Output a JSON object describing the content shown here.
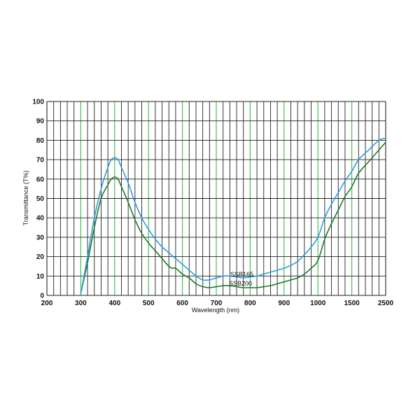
{
  "chart_data": {
    "type": "line",
    "xlabel": "Wavelength (nm)",
    "ylabel": "Transmittance (T%)",
    "x_tick_labels": [
      "200",
      "300",
      "400",
      "500",
      "600",
      "700",
      "800",
      "900",
      "1000",
      "1500",
      "2500"
    ],
    "x_scale": "piecewise: 200-1000 linear, 1000-1500 and 1500-2500 each one major division",
    "y_tick_labels": [
      "0",
      "10",
      "20",
      "30",
      "40",
      "50",
      "60",
      "70",
      "80",
      "90",
      "100"
    ],
    "xlim": [
      200,
      2500
    ],
    "ylim": [
      0,
      100
    ],
    "grid": true,
    "legend": "none (labels placed on curves)",
    "colors": {
      "ssb165": "#2d9ee0",
      "ssb200": "#1f7a2e",
      "grid_major": "#3cb84a",
      "grid_minor": "#222222"
    },
    "series": [
      {
        "name": "SSB165",
        "points": [
          [
            300,
            1
          ],
          [
            320,
            20
          ],
          [
            340,
            40
          ],
          [
            360,
            55
          ],
          [
            380,
            66
          ],
          [
            390,
            70
          ],
          [
            400,
            71
          ],
          [
            410,
            70
          ],
          [
            420,
            66
          ],
          [
            440,
            58
          ],
          [
            460,
            48
          ],
          [
            480,
            40
          ],
          [
            500,
            34
          ],
          [
            520,
            29
          ],
          [
            540,
            25
          ],
          [
            560,
            22
          ],
          [
            580,
            19
          ],
          [
            600,
            16
          ],
          [
            620,
            13
          ],
          [
            640,
            10
          ],
          [
            660,
            8
          ],
          [
            680,
            8
          ],
          [
            700,
            9
          ],
          [
            720,
            10
          ],
          [
            740,
            10
          ],
          [
            760,
            9.5
          ],
          [
            780,
            9
          ],
          [
            800,
            9.5
          ],
          [
            820,
            10
          ],
          [
            840,
            11
          ],
          [
            860,
            12
          ],
          [
            880,
            13
          ],
          [
            900,
            14
          ],
          [
            920,
            15.5
          ],
          [
            940,
            17.5
          ],
          [
            960,
            21
          ],
          [
            980,
            25
          ],
          [
            1000,
            30
          ],
          [
            1100,
            40
          ],
          [
            1200,
            47
          ],
          [
            1300,
            53
          ],
          [
            1400,
            59
          ],
          [
            1500,
            64
          ],
          [
            1700,
            70
          ],
          [
            2000,
            75
          ],
          [
            2300,
            80
          ],
          [
            2500,
            81
          ]
        ]
      },
      {
        "name": "SSB200",
        "points": [
          [
            300,
            1
          ],
          [
            320,
            17
          ],
          [
            340,
            35
          ],
          [
            360,
            50
          ],
          [
            380,
            57
          ],
          [
            390,
            60
          ],
          [
            400,
            61
          ],
          [
            410,
            60
          ],
          [
            420,
            56
          ],
          [
            440,
            48
          ],
          [
            460,
            39
          ],
          [
            480,
            32
          ],
          [
            500,
            27
          ],
          [
            520,
            23
          ],
          [
            540,
            19
          ],
          [
            560,
            15
          ],
          [
            570,
            14
          ],
          [
            580,
            14
          ],
          [
            600,
            11
          ],
          [
            620,
            9
          ],
          [
            640,
            6
          ],
          [
            660,
            4.5
          ],
          [
            680,
            4
          ],
          [
            700,
            4.5
          ],
          [
            720,
            5
          ],
          [
            740,
            5
          ],
          [
            760,
            4.5
          ],
          [
            780,
            4
          ],
          [
            800,
            4
          ],
          [
            820,
            4
          ],
          [
            840,
            4.5
          ],
          [
            860,
            5
          ],
          [
            880,
            6
          ],
          [
            900,
            7
          ],
          [
            920,
            8
          ],
          [
            940,
            9
          ],
          [
            960,
            11
          ],
          [
            980,
            14
          ],
          [
            1000,
            18
          ],
          [
            1100,
            29
          ],
          [
            1200,
            37
          ],
          [
            1300,
            44
          ],
          [
            1400,
            51
          ],
          [
            1500,
            56
          ],
          [
            1700,
            63
          ],
          [
            2000,
            69
          ],
          [
            2300,
            75
          ],
          [
            2500,
            79
          ]
        ]
      }
    ]
  }
}
